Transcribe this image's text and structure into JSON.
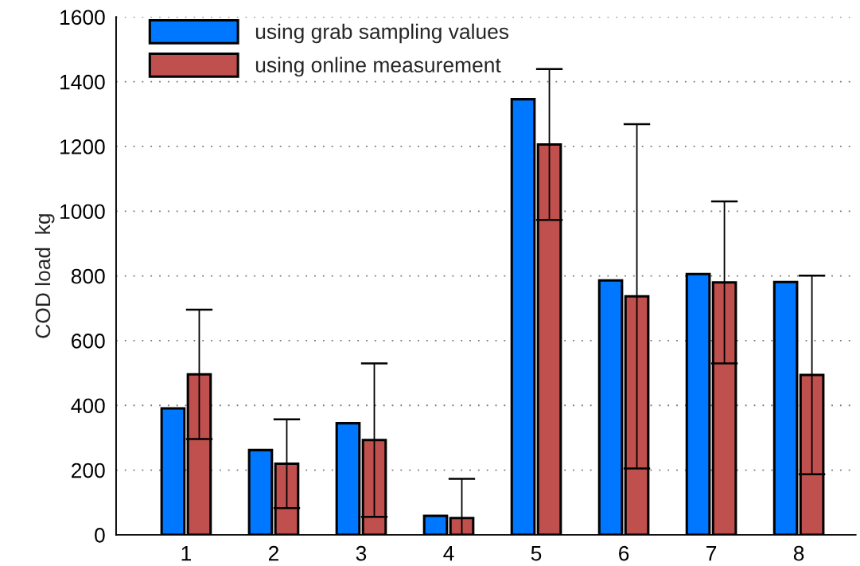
{
  "chart_data": {
    "type": "bar",
    "ylabel": "COD load  kg",
    "categories": [
      "1",
      "2",
      "3",
      "4",
      "5",
      "6",
      "7",
      "8"
    ],
    "series": [
      {
        "name": "using grab sampling values",
        "color": "#0077ff",
        "values": [
          391,
          262,
          345,
          59,
          1346,
          786,
          806,
          781
        ]
      },
      {
        "name": "using online measurement",
        "color": "#c0504d",
        "values": [
          496,
          220,
          293,
          52,
          1206,
          737,
          780,
          494
        ],
        "errors": [
          200,
          137,
          237,
          121,
          233,
          532,
          250,
          307
        ]
      }
    ],
    "ylim": [
      0,
      1600
    ],
    "yticks": [
      0,
      200,
      400,
      600,
      800,
      1000,
      1200,
      1400,
      1600
    ],
    "grid": "y",
    "legend": "top left"
  }
}
